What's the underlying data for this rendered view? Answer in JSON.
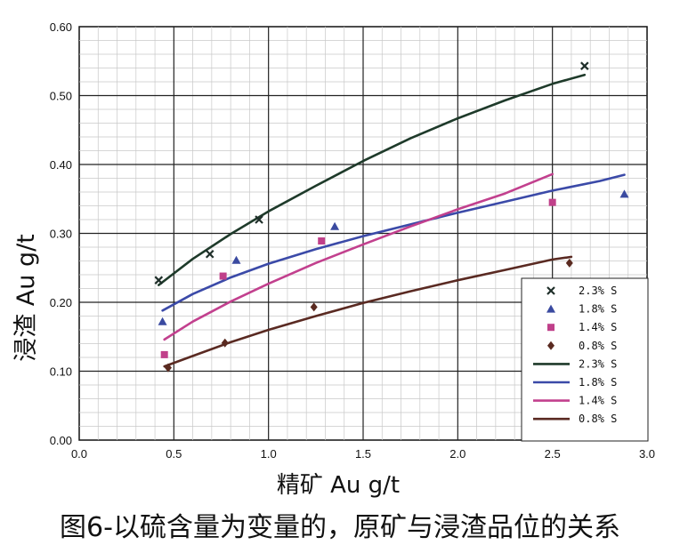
{
  "chart_data": {
    "type": "scatter",
    "xlabel": "精矿 Au g/t",
    "ylabel": "浸渣 Au g/t",
    "xlim": [
      0,
      3.0
    ],
    "ylim": [
      0,
      0.6
    ],
    "x_ticks": [
      "0.0",
      "0.5",
      "1.0",
      "1.5",
      "2.0",
      "2.5",
      "3.0"
    ],
    "y_ticks": [
      "0.00",
      "0.10",
      "0.20",
      "0.30",
      "0.40",
      "0.50",
      "0.60"
    ],
    "grid": true,
    "legend_position": "bottom-right",
    "series": [
      {
        "name": "2.3% S",
        "kind": "points",
        "marker": "x",
        "color": "#1f2f2a",
        "points": [
          [
            0.42,
            0.232
          ],
          [
            0.69,
            0.27
          ],
          [
            0.95,
            0.32
          ],
          [
            2.67,
            0.543
          ]
        ]
      },
      {
        "name": "1.8% S",
        "kind": "points",
        "marker": "triangle",
        "color": "#3a4aa0",
        "points": [
          [
            0.44,
            0.172
          ],
          [
            0.83,
            0.261
          ],
          [
            1.35,
            0.31
          ],
          [
            2.88,
            0.357
          ]
        ]
      },
      {
        "name": "1.4% S",
        "kind": "points",
        "marker": "square",
        "color": "#c0408a",
        "points": [
          [
            0.45,
            0.124
          ],
          [
            0.76,
            0.238
          ],
          [
            1.28,
            0.289
          ],
          [
            2.5,
            0.345
          ]
        ]
      },
      {
        "name": "0.8% S",
        "kind": "points",
        "marker": "diamond",
        "color": "#5a2a20",
        "points": [
          [
            0.47,
            0.105
          ],
          [
            0.77,
            0.141
          ],
          [
            1.24,
            0.193
          ],
          [
            2.59,
            0.257
          ]
        ]
      },
      {
        "name": "2.3% S",
        "kind": "trend",
        "color": "#1e3a2a",
        "points": [
          [
            0.42,
            0.225
          ],
          [
            0.6,
            0.263
          ],
          [
            0.8,
            0.299
          ],
          [
            1.0,
            0.332
          ],
          [
            1.25,
            0.369
          ],
          [
            1.5,
            0.405
          ],
          [
            1.75,
            0.438
          ],
          [
            2.0,
            0.467
          ],
          [
            2.25,
            0.493
          ],
          [
            2.5,
            0.517
          ],
          [
            2.67,
            0.53
          ]
        ]
      },
      {
        "name": "1.8% S",
        "kind": "trend",
        "color": "#3b4aa8",
        "points": [
          [
            0.44,
            0.188
          ],
          [
            0.6,
            0.212
          ],
          [
            0.8,
            0.236
          ],
          [
            1.0,
            0.256
          ],
          [
            1.25,
            0.277
          ],
          [
            1.5,
            0.296
          ],
          [
            1.75,
            0.313
          ],
          [
            2.0,
            0.33
          ],
          [
            2.25,
            0.346
          ],
          [
            2.5,
            0.362
          ],
          [
            2.75,
            0.376
          ],
          [
            2.88,
            0.385
          ]
        ]
      },
      {
        "name": "1.4% S",
        "kind": "trend",
        "color": "#c2408e",
        "points": [
          [
            0.45,
            0.146
          ],
          [
            0.6,
            0.172
          ],
          [
            0.8,
            0.201
          ],
          [
            1.0,
            0.227
          ],
          [
            1.25,
            0.257
          ],
          [
            1.5,
            0.284
          ],
          [
            1.75,
            0.31
          ],
          [
            2.0,
            0.335
          ],
          [
            2.25,
            0.358
          ],
          [
            2.5,
            0.386
          ]
        ]
      },
      {
        "name": "0.8% S",
        "kind": "trend",
        "color": "#5a2a22",
        "points": [
          [
            0.45,
            0.107
          ],
          [
            0.6,
            0.122
          ],
          [
            0.8,
            0.142
          ],
          [
            1.0,
            0.16
          ],
          [
            1.25,
            0.18
          ],
          [
            1.5,
            0.199
          ],
          [
            1.75,
            0.216
          ],
          [
            2.0,
            0.232
          ],
          [
            2.25,
            0.247
          ],
          [
            2.5,
            0.262
          ],
          [
            2.6,
            0.266
          ]
        ]
      }
    ]
  },
  "caption": "图6-以硫含量为变量的，原矿与浸渣品位的关系"
}
